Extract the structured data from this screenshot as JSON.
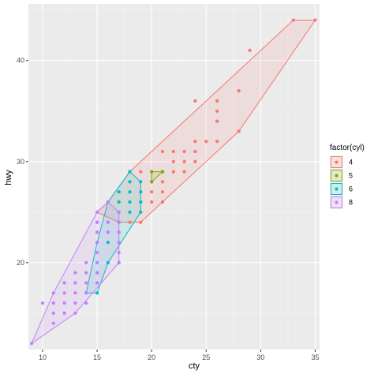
{
  "chart_data": {
    "type": "scatter",
    "xlabel": "cty",
    "ylabel": "hwy",
    "xlim": [
      8.7,
      35.4
    ],
    "ylim": [
      11.4,
      45.6
    ],
    "x_ticks": [
      10,
      15,
      20,
      25,
      30,
      35
    ],
    "y_ticks": [
      20,
      30,
      40
    ],
    "grid": true,
    "legend": {
      "title": "factor(cyl)",
      "position": "right"
    },
    "series": [
      {
        "name": "4",
        "color": "#F8766D",
        "points": [
          [
            15,
            25
          ],
          [
            16,
            26
          ],
          [
            17,
            24
          ],
          [
            17,
            26
          ],
          [
            17,
            27
          ],
          [
            18,
            24
          ],
          [
            18,
            25
          ],
          [
            18,
            26
          ],
          [
            18,
            27
          ],
          [
            18,
            28
          ],
          [
            18,
            29
          ],
          [
            19,
            24
          ],
          [
            19,
            25
          ],
          [
            19,
            26
          ],
          [
            19,
            27
          ],
          [
            19,
            29
          ],
          [
            20,
            26
          ],
          [
            20,
            27
          ],
          [
            20,
            28
          ],
          [
            20,
            29
          ],
          [
            21,
            26
          ],
          [
            21,
            27
          ],
          [
            21,
            28
          ],
          [
            21,
            29
          ],
          [
            21,
            31
          ],
          [
            22,
            29
          ],
          [
            22,
            30
          ],
          [
            22,
            31
          ],
          [
            23,
            29
          ],
          [
            23,
            30
          ],
          [
            23,
            31
          ],
          [
            24,
            30
          ],
          [
            24,
            31
          ],
          [
            24,
            32
          ],
          [
            24,
            36
          ],
          [
            25,
            32
          ],
          [
            26,
            32
          ],
          [
            26,
            35
          ],
          [
            26,
            36
          ],
          [
            26,
            34
          ],
          [
            28,
            33
          ],
          [
            28,
            37
          ],
          [
            29,
            41
          ],
          [
            33,
            44
          ],
          [
            35,
            44
          ]
        ],
        "hull": [
          [
            15,
            25
          ],
          [
            17,
            24
          ],
          [
            18,
            24
          ],
          [
            19,
            24
          ],
          [
            28,
            33
          ],
          [
            35,
            44
          ],
          [
            33,
            44
          ],
          [
            18,
            29
          ],
          [
            16,
            26
          ]
        ]
      },
      {
        "name": "5",
        "color": "#7CAE00",
        "points": [
          [
            20,
            28
          ],
          [
            20,
            29
          ],
          [
            21,
            29
          ]
        ],
        "hull": [
          [
            20,
            28
          ],
          [
            21,
            29
          ],
          [
            20,
            29
          ]
        ]
      },
      {
        "name": "6",
        "color": "#00BFC4",
        "points": [
          [
            14,
            17
          ],
          [
            15,
            17
          ],
          [
            15,
            18
          ],
          [
            15,
            19
          ],
          [
            15,
            20
          ],
          [
            15,
            22
          ],
          [
            15,
            24
          ],
          [
            16,
            20
          ],
          [
            16,
            22
          ],
          [
            16,
            23
          ],
          [
            16,
            24
          ],
          [
            17,
            23
          ],
          [
            17,
            24
          ],
          [
            17,
            25
          ],
          [
            17,
            26
          ],
          [
            17,
            27
          ],
          [
            18,
            25
          ],
          [
            18,
            26
          ],
          [
            18,
            27
          ],
          [
            18,
            28
          ],
          [
            18,
            29
          ],
          [
            19,
            25
          ],
          [
            19,
            26
          ],
          [
            19,
            27
          ],
          [
            19,
            28
          ],
          [
            17,
            20
          ]
        ],
        "hull": [
          [
            14,
            17
          ],
          [
            15,
            17
          ],
          [
            16,
            20
          ],
          [
            19,
            25
          ],
          [
            19,
            28
          ],
          [
            18,
            29
          ],
          [
            16,
            26
          ],
          [
            15,
            22
          ]
        ]
      },
      {
        "name": "8",
        "color": "#C77CFF",
        "points": [
          [
            9,
            12
          ],
          [
            11,
            14
          ],
          [
            11,
            15
          ],
          [
            11,
            16
          ],
          [
            11,
            17
          ],
          [
            12,
            15
          ],
          [
            12,
            16
          ],
          [
            12,
            17
          ],
          [
            12,
            18
          ],
          [
            13,
            15
          ],
          [
            13,
            16
          ],
          [
            13,
            17
          ],
          [
            13,
            18
          ],
          [
            13,
            19
          ],
          [
            14,
            16
          ],
          [
            14,
            17
          ],
          [
            14,
            18
          ],
          [
            14,
            19
          ],
          [
            14,
            20
          ],
          [
            15,
            18
          ],
          [
            15,
            19
          ],
          [
            15,
            20
          ],
          [
            15,
            21
          ],
          [
            15,
            22
          ],
          [
            15,
            23
          ],
          [
            15,
            24
          ],
          [
            15,
            25
          ],
          [
            16,
            23
          ],
          [
            16,
            24
          ],
          [
            16,
            26
          ],
          [
            17,
            20
          ],
          [
            17,
            21
          ],
          [
            17,
            22
          ],
          [
            17,
            23
          ],
          [
            17,
            24
          ],
          [
            17,
            25
          ],
          [
            10,
            16
          ]
        ],
        "hull": [
          [
            9,
            12
          ],
          [
            13,
            15
          ],
          [
            17,
            20
          ],
          [
            17,
            25
          ],
          [
            16,
            26
          ],
          [
            15,
            25
          ],
          [
            11,
            17
          ]
        ]
      }
    ]
  }
}
